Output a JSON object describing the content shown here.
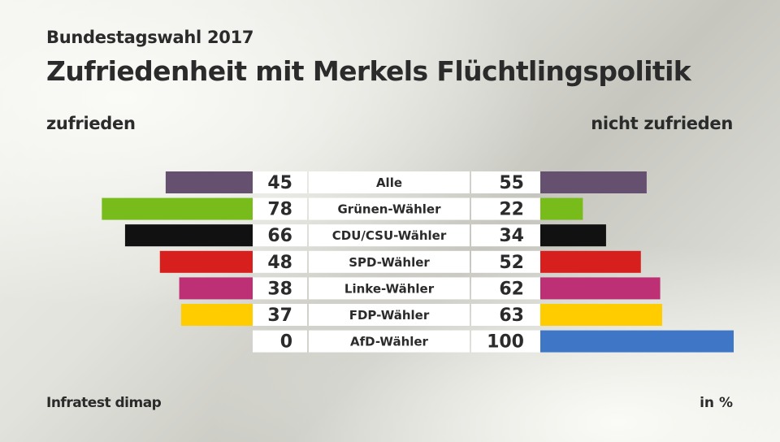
{
  "header": {
    "subtitle": "Bundestagswahl 2017",
    "title": "Zufriedenheit mit Merkels Flüchtlingspolitik"
  },
  "legend": {
    "left": "zufrieden",
    "right": "nicht zufrieden"
  },
  "footer": {
    "source": "Infratest dimap",
    "unit": "in %"
  },
  "chart_data": {
    "type": "bar",
    "orientation": "horizontal-diverging",
    "title": "Zufriedenheit mit Merkels Flüchtlingspolitik",
    "subtitle": "Bundestagswahl 2017",
    "unit": "in %",
    "xlim": [
      0,
      100
    ],
    "categories": [
      "Alle",
      "Grünen-Wähler",
      "CDU/CSU-Wähler",
      "SPD-Wähler",
      "Linke-Wähler",
      "FDP-Wähler",
      "AfD-Wähler"
    ],
    "colors": [
      "#66506f",
      "#78bc1b",
      "#111111",
      "#d71f1d",
      "#be3075",
      "#ffcc00",
      "#4076c6"
    ],
    "series": [
      {
        "name": "zufrieden",
        "side": "left",
        "values": [
          45,
          78,
          66,
          48,
          38,
          37,
          0
        ]
      },
      {
        "name": "nicht zufrieden",
        "side": "right",
        "values": [
          55,
          22,
          34,
          52,
          62,
          63,
          100
        ]
      }
    ],
    "legend": [
      "zufrieden",
      "nicht zufrieden"
    ],
    "grid": false,
    "source": "Infratest dimap"
  }
}
